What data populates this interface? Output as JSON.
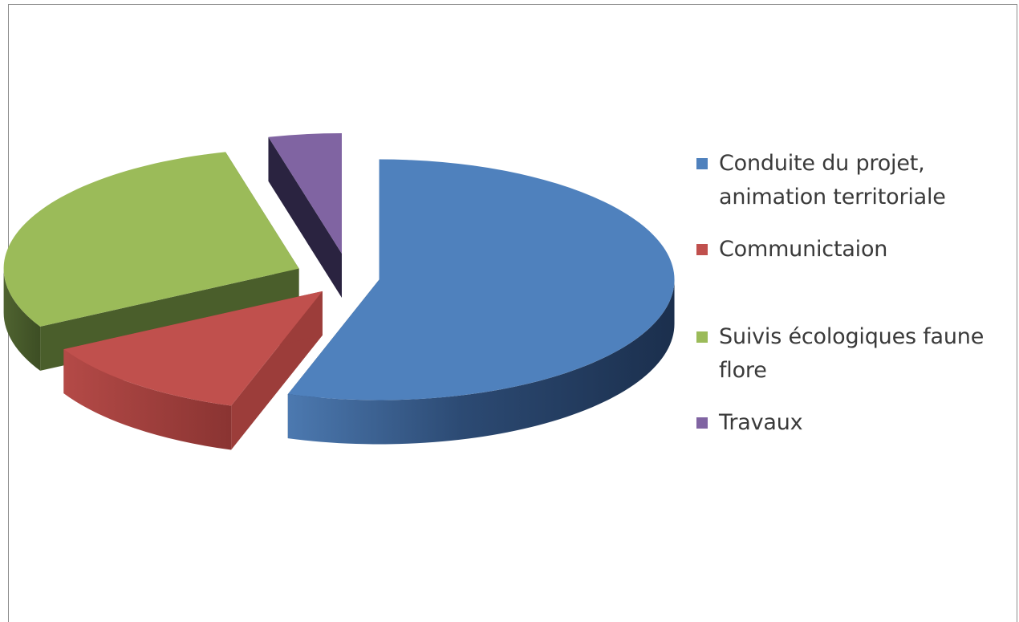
{
  "chart_data": {
    "type": "pie",
    "style": "3d-exploded",
    "title": "",
    "slices": [
      {
        "label": "Conduite du projet, animation territoriale",
        "value": 55,
        "color": "#4f81bd"
      },
      {
        "label": "Communictaion",
        "value": 12,
        "color": "#c0504d"
      },
      {
        "label": "Suivis écologiques faune flore",
        "value": 29,
        "color": "#9bbb59"
      },
      {
        "label": "Travaux",
        "value": 4,
        "color": "#8064a2"
      }
    ],
    "legend_position": "right"
  }
}
